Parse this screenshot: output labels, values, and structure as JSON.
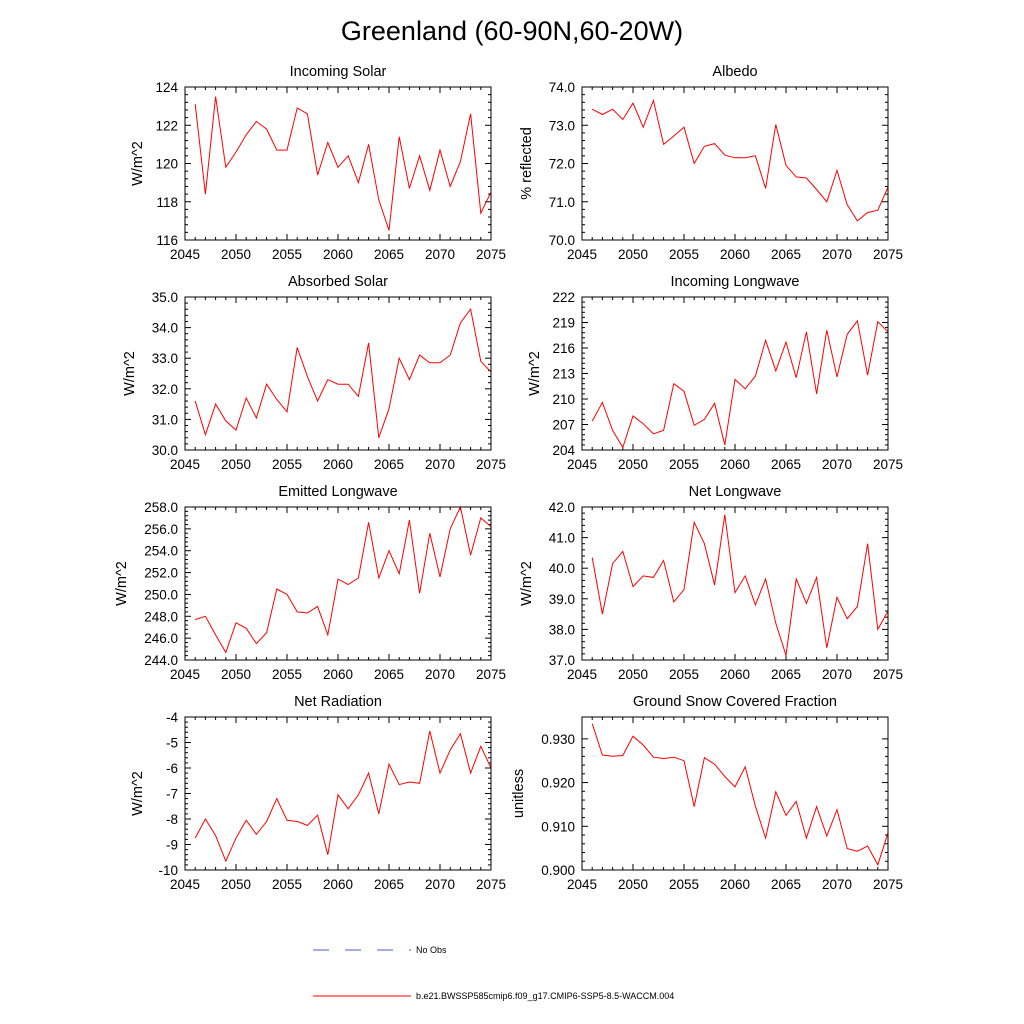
{
  "figure": {
    "title": "Greenland (60-90N,60-20W)",
    "legend": [
      {
        "label": "No Obs",
        "color": "#4a5fc0",
        "style": "dashed"
      },
      {
        "label": "b.e21.BWSSP585cmip6.f09_g17.CMIP6-SSP5-8.5-WACCM.004",
        "color": "#ff0000",
        "style": "solid"
      }
    ]
  },
  "chart_data": [
    {
      "type": "line",
      "title": "Incoming Solar",
      "xlabel": "",
      "ylabel": "W/m^2",
      "xlim": [
        2045,
        2075
      ],
      "ylim": [
        116,
        124
      ],
      "xticks": [
        2045,
        2050,
        2055,
        2060,
        2065,
        2070,
        2075
      ],
      "xtick_labels": [
        "2045",
        "2050",
        "2055",
        "2060",
        "2065",
        "2070",
        "2075"
      ],
      "yticks": [
        116,
        118,
        120,
        122,
        124
      ],
      "ytick_labels": [
        "116",
        "118",
        "120",
        "122",
        "124"
      ],
      "series": [
        {
          "name": "b.e21.BWSSP585cmip6.f09_g17.CMIP6-SSP5-8.5-WACCM.004",
          "color": "#ff0000",
          "x": [
            2046,
            2047,
            2048,
            2049,
            2050,
            2051,
            2052,
            2053,
            2054,
            2055,
            2056,
            2057,
            2058,
            2059,
            2060,
            2061,
            2062,
            2063,
            2064,
            2065,
            2066,
            2067,
            2068,
            2069,
            2070,
            2071,
            2072,
            2073,
            2074,
            2075
          ],
          "values": [
            123.1,
            118.4,
            123.5,
            119.8,
            120.6,
            121.5,
            122.2,
            121.8,
            120.7,
            120.7,
            122.9,
            122.6,
            119.4,
            121.1,
            119.8,
            120.4,
            119.0,
            121.0,
            118.1,
            116.5,
            121.4,
            118.7,
            120.4,
            118.6,
            120.7,
            118.8,
            120.1,
            122.6,
            117.4,
            118.5
          ]
        }
      ]
    },
    {
      "type": "line",
      "title": "Albedo",
      "xlabel": "",
      "ylabel": "% reflected",
      "xlim": [
        2045,
        2075
      ],
      "ylim": [
        70.0,
        74.0
      ],
      "xticks": [
        2045,
        2050,
        2055,
        2060,
        2065,
        2070,
        2075
      ],
      "xtick_labels": [
        "2045",
        "2050",
        "2055",
        "2060",
        "2065",
        "2070",
        "2075"
      ],
      "yticks": [
        70,
        71,
        72,
        73,
        74
      ],
      "ytick_labels": [
        "70.0",
        "71.0",
        "72.0",
        "73.0",
        "74.0"
      ],
      "series": [
        {
          "name": "b.e21.BWSSP585cmip6.f09_g17.CMIP6-SSP5-8.5-WACCM.004",
          "color": "#ff0000",
          "x": [
            2046,
            2047,
            2048,
            2049,
            2050,
            2051,
            2052,
            2053,
            2054,
            2055,
            2056,
            2057,
            2058,
            2059,
            2060,
            2061,
            2062,
            2063,
            2064,
            2065,
            2066,
            2067,
            2068,
            2069,
            2070,
            2071,
            2072,
            2073,
            2074,
            2075
          ],
          "values": [
            73.42,
            73.28,
            73.42,
            73.15,
            73.58,
            72.95,
            73.65,
            72.5,
            72.72,
            72.95,
            72.0,
            72.45,
            72.52,
            72.22,
            72.15,
            72.15,
            72.2,
            71.35,
            73.02,
            71.95,
            71.65,
            71.62,
            71.32,
            71.0,
            71.82,
            70.92,
            70.5,
            70.72,
            70.78,
            71.38
          ]
        }
      ]
    },
    {
      "type": "line",
      "title": "Absorbed Solar",
      "xlabel": "",
      "ylabel": "W/m^2",
      "xlim": [
        2045,
        2075
      ],
      "ylim": [
        30.0,
        35.0
      ],
      "xticks": [
        2045,
        2050,
        2055,
        2060,
        2065,
        2070,
        2075
      ],
      "xtick_labels": [
        "2045",
        "2050",
        "2055",
        "2060",
        "2065",
        "2070",
        "2075"
      ],
      "yticks": [
        30,
        31,
        32,
        33,
        34,
        35
      ],
      "ytick_labels": [
        "30.0",
        "31.0",
        "32.0",
        "33.0",
        "34.0",
        "35.0"
      ],
      "series": [
        {
          "name": "b.e21.BWSSP585cmip6.f09_g17.CMIP6-SSP5-8.5-WACCM.004",
          "color": "#ff0000",
          "x": [
            2046,
            2047,
            2048,
            2049,
            2050,
            2051,
            2052,
            2053,
            2054,
            2055,
            2056,
            2057,
            2058,
            2059,
            2060,
            2061,
            2062,
            2063,
            2064,
            2065,
            2066,
            2067,
            2068,
            2069,
            2070,
            2071,
            2072,
            2073,
            2074,
            2075
          ],
          "values": [
            31.6,
            30.5,
            31.5,
            30.95,
            30.65,
            31.7,
            31.05,
            32.15,
            31.65,
            31.25,
            33.35,
            32.4,
            31.6,
            32.3,
            32.15,
            32.15,
            31.75,
            33.5,
            30.4,
            31.35,
            33.0,
            32.3,
            33.1,
            32.85,
            32.85,
            33.1,
            34.15,
            34.6,
            32.9,
            32.55
          ]
        }
      ]
    },
    {
      "type": "line",
      "title": "Incoming Longwave",
      "xlabel": "",
      "ylabel": "W/m^2",
      "xlim": [
        2045,
        2075
      ],
      "ylim": [
        204,
        222
      ],
      "xticks": [
        2045,
        2050,
        2055,
        2060,
        2065,
        2070,
        2075
      ],
      "xtick_labels": [
        "2045",
        "2050",
        "2055",
        "2060",
        "2065",
        "2070",
        "2075"
      ],
      "yticks": [
        204,
        207,
        210,
        213,
        216,
        219,
        222
      ],
      "ytick_labels": [
        "204",
        "207",
        "210",
        "213",
        "216",
        "219",
        "222"
      ],
      "series": [
        {
          "name": "b.e21.BWSSP585cmip6.f09_g17.CMIP6-SSP5-8.5-WACCM.004",
          "color": "#ff0000",
          "x": [
            2046,
            2047,
            2048,
            2049,
            2050,
            2051,
            2052,
            2053,
            2054,
            2055,
            2056,
            2057,
            2058,
            2059,
            2060,
            2061,
            2062,
            2063,
            2064,
            2065,
            2066,
            2067,
            2068,
            2069,
            2070,
            2071,
            2072,
            2073,
            2074,
            2075
          ],
          "values": [
            207.4,
            209.6,
            206.3,
            204.3,
            208.0,
            207.1,
            205.9,
            206.3,
            211.8,
            210.9,
            206.9,
            207.6,
            209.5,
            204.6,
            212.3,
            211.2,
            212.7,
            216.9,
            213.3,
            216.7,
            212.5,
            217.9,
            210.6,
            218.1,
            212.6,
            217.6,
            219.2,
            212.8,
            219.1,
            217.9
          ]
        }
      ]
    },
    {
      "type": "line",
      "title": "Emitted Longwave",
      "xlabel": "",
      "ylabel": "W/m^2",
      "xlim": [
        2045,
        2075
      ],
      "ylim": [
        244.0,
        258.0
      ],
      "xticks": [
        2045,
        2050,
        2055,
        2060,
        2065,
        2070,
        2075
      ],
      "xtick_labels": [
        "2045",
        "2050",
        "2055",
        "2060",
        "2065",
        "2070",
        "2075"
      ],
      "yticks": [
        244,
        246,
        248,
        250,
        252,
        254,
        256,
        258
      ],
      "ytick_labels": [
        "244.0",
        "246.0",
        "248.0",
        "250.0",
        "252.0",
        "254.0",
        "256.0",
        "258.0"
      ],
      "series": [
        {
          "name": "b.e21.BWSSP585cmip6.f09_g17.CMIP6-SSP5-8.5-WACCM.004",
          "color": "#ff0000",
          "x": [
            2046,
            2047,
            2048,
            2049,
            2050,
            2051,
            2052,
            2053,
            2054,
            2055,
            2056,
            2057,
            2058,
            2059,
            2060,
            2061,
            2062,
            2063,
            2064,
            2065,
            2066,
            2067,
            2068,
            2069,
            2070,
            2071,
            2072,
            2073,
            2074,
            2075
          ],
          "values": [
            247.7,
            248.0,
            246.3,
            244.7,
            247.4,
            246.9,
            245.5,
            246.5,
            250.5,
            250.0,
            248.4,
            248.3,
            248.9,
            246.3,
            251.4,
            250.9,
            251.5,
            256.6,
            251.5,
            254.0,
            251.9,
            256.8,
            250.1,
            255.6,
            251.6,
            256.0,
            258.0,
            253.6,
            257.0,
            256.2
          ]
        }
      ]
    },
    {
      "type": "line",
      "title": "Net Longwave",
      "xlabel": "",
      "ylabel": "W/m^2",
      "xlim": [
        2045,
        2075
      ],
      "ylim": [
        37.0,
        42.0
      ],
      "xticks": [
        2045,
        2050,
        2055,
        2060,
        2065,
        2070,
        2075
      ],
      "xtick_labels": [
        "2045",
        "2050",
        "2055",
        "2060",
        "2065",
        "2070",
        "2075"
      ],
      "yticks": [
        37,
        38,
        39,
        40,
        41,
        42
      ],
      "ytick_labels": [
        "37.0",
        "38.0",
        "39.0",
        "40.0",
        "41.0",
        "42.0"
      ],
      "series": [
        {
          "name": "b.e21.BWSSP585cmip6.f09_g17.CMIP6-SSP5-8.5-WACCM.004",
          "color": "#ff0000",
          "x": [
            2046,
            2047,
            2048,
            2049,
            2050,
            2051,
            2052,
            2053,
            2054,
            2055,
            2056,
            2057,
            2058,
            2059,
            2060,
            2061,
            2062,
            2063,
            2064,
            2065,
            2066,
            2067,
            2068,
            2069,
            2070,
            2071,
            2072,
            2073,
            2074,
            2075
          ],
          "values": [
            40.35,
            38.5,
            40.15,
            40.55,
            39.4,
            39.75,
            39.7,
            40.25,
            38.9,
            39.3,
            41.5,
            40.8,
            39.45,
            41.75,
            39.2,
            39.75,
            38.8,
            39.65,
            38.2,
            37.15,
            39.65,
            38.85,
            39.7,
            37.4,
            39.05,
            38.35,
            38.75,
            40.8,
            38.0,
            38.6
          ]
        }
      ]
    },
    {
      "type": "line",
      "title": "Net Radiation",
      "xlabel": "",
      "ylabel": "W/m^2",
      "xlim": [
        2045,
        2075
      ],
      "ylim": [
        -10,
        -4
      ],
      "xticks": [
        2045,
        2050,
        2055,
        2060,
        2065,
        2070,
        2075
      ],
      "xtick_labels": [
        "2045",
        "2050",
        "2055",
        "2060",
        "2065",
        "2070",
        "2075"
      ],
      "yticks": [
        -10,
        -9,
        -8,
        -7,
        -6,
        -5,
        -4
      ],
      "ytick_labels": [
        "-10",
        "-9",
        "-8",
        "-7",
        "-6",
        "-5",
        "-4"
      ],
      "series": [
        {
          "name": "b.e21.BWSSP585cmip6.f09_g17.CMIP6-SSP5-8.5-WACCM.004",
          "color": "#ff0000",
          "x": [
            2046,
            2047,
            2048,
            2049,
            2050,
            2051,
            2052,
            2053,
            2054,
            2055,
            2056,
            2057,
            2058,
            2059,
            2060,
            2061,
            2062,
            2063,
            2064,
            2065,
            2066,
            2067,
            2068,
            2069,
            2070,
            2071,
            2072,
            2073,
            2074,
            2075
          ],
          "values": [
            -8.75,
            -8.0,
            -8.65,
            -9.65,
            -8.75,
            -8.05,
            -8.6,
            -8.1,
            -7.2,
            -8.05,
            -8.1,
            -8.25,
            -7.85,
            -9.4,
            -7.05,
            -7.6,
            -7.05,
            -6.2,
            -7.8,
            -5.85,
            -6.65,
            -6.55,
            -6.6,
            -4.55,
            -6.2,
            -5.3,
            -4.65,
            -6.2,
            -5.15,
            -6.0
          ]
        }
      ]
    },
    {
      "type": "line",
      "title": "Ground Snow Covered Fraction",
      "xlabel": "",
      "ylabel": "unitless",
      "xlim": [
        2045,
        2075
      ],
      "ylim": [
        0.9,
        0.935
      ],
      "xticks": [
        2045,
        2050,
        2055,
        2060,
        2065,
        2070,
        2075
      ],
      "xtick_labels": [
        "2045",
        "2050",
        "2055",
        "2060",
        "2065",
        "2070",
        "2075"
      ],
      "yticks": [
        0.9,
        0.91,
        0.92,
        0.93
      ],
      "ytick_labels": [
        "0.900",
        "0.910",
        "0.920",
        "0.930"
      ],
      "series": [
        {
          "name": "b.e21.BWSSP585cmip6.f09_g17.CMIP6-SSP5-8.5-WACCM.004",
          "color": "#ff0000",
          "x": [
            2046,
            2047,
            2048,
            2049,
            2050,
            2051,
            2052,
            2053,
            2054,
            2055,
            2056,
            2057,
            2058,
            2059,
            2060,
            2061,
            2062,
            2063,
            2064,
            2065,
            2066,
            2067,
            2068,
            2069,
            2070,
            2071,
            2072,
            2073,
            2074,
            2075
          ],
          "values": [
            0.9335,
            0.9263,
            0.926,
            0.9262,
            0.9306,
            0.9286,
            0.9258,
            0.9255,
            0.9258,
            0.925,
            0.9145,
            0.9257,
            0.9242,
            0.9214,
            0.919,
            0.9236,
            0.9146,
            0.9073,
            0.9179,
            0.9125,
            0.9157,
            0.9073,
            0.9145,
            0.9078,
            0.9138,
            0.9049,
            0.9043,
            0.9055,
            0.9012,
            0.9085
          ]
        }
      ]
    }
  ]
}
